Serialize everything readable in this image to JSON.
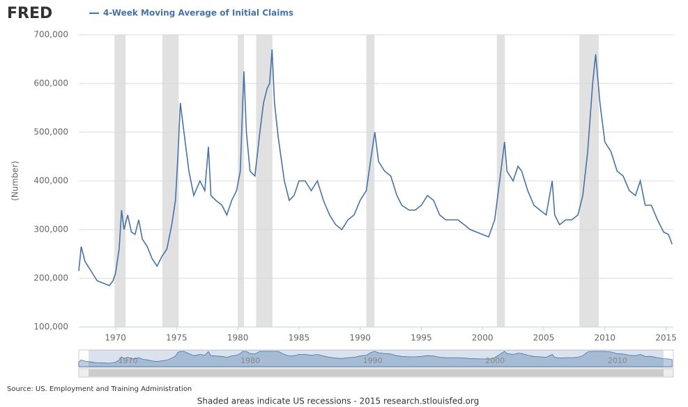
{
  "logo": "FRED",
  "footer": "Shaded areas indicate US recessions - 2015 research.stlouisfed.org",
  "chart_data": {
    "type": "line",
    "ylabel": "(Number)",
    "source": "Source: US. Employment and Training Administration",
    "grid": true,
    "xlim": [
      1967,
      2015.6
    ],
    "ylim": [
      100000,
      700000
    ],
    "xticks": [
      1970,
      1975,
      1980,
      1985,
      1990,
      1995,
      2000,
      2005,
      2010,
      2015
    ],
    "yticks": [
      {
        "value": 100000,
        "label": "100,000"
      },
      {
        "value": 200000,
        "label": "200,000"
      },
      {
        "value": 300000,
        "label": "300,000"
      },
      {
        "value": 400000,
        "label": "400,000"
      },
      {
        "value": 500000,
        "label": "500,000"
      },
      {
        "value": 600000,
        "label": "600,000"
      },
      {
        "value": 700000,
        "label": "700,000"
      }
    ],
    "recessions": [
      [
        1969.92,
        1970.83
      ],
      [
        1973.83,
        1975.17
      ],
      [
        1980.0,
        1980.5
      ],
      [
        1981.5,
        1982.83
      ],
      [
        1990.5,
        1991.17
      ],
      [
        2001.17,
        2001.83
      ],
      [
        2007.92,
        2009.5
      ]
    ],
    "recession_color": "#e1e1e1",
    "navigator_ticks": [
      1970,
      1980,
      1990,
      2000,
      2010
    ],
    "x": [
      1967.0,
      1967.2,
      1967.5,
      1968.0,
      1968.5,
      1969.0,
      1969.5,
      1969.8,
      1970.0,
      1970.3,
      1970.5,
      1970.7,
      1971.0,
      1971.3,
      1971.6,
      1971.9,
      1972.2,
      1972.6,
      1973.0,
      1973.4,
      1973.8,
      1974.2,
      1974.6,
      1974.9,
      1975.1,
      1975.3,
      1975.6,
      1976.0,
      1976.4,
      1976.9,
      1977.3,
      1977.6,
      1977.8,
      1978.2,
      1978.7,
      1979.1,
      1979.5,
      1979.9,
      1980.2,
      1980.4,
      1980.5,
      1980.7,
      1981.0,
      1981.4,
      1981.8,
      1982.1,
      1982.4,
      1982.6,
      1982.8,
      1983.0,
      1983.3,
      1983.8,
      1984.2,
      1984.6,
      1985.0,
      1985.5,
      1986.0,
      1986.5,
      1987.0,
      1987.5,
      1988.0,
      1988.5,
      1989.0,
      1989.5,
      1990.0,
      1990.5,
      1990.9,
      1991.2,
      1991.5,
      1992.0,
      1992.5,
      1993.0,
      1993.4,
      1994.0,
      1994.5,
      1995.0,
      1995.5,
      1996.0,
      1996.5,
      1997.0,
      1997.5,
      1998.0,
      1998.5,
      1999.0,
      1999.5,
      2000.0,
      2000.5,
      2001.0,
      2001.4,
      2001.8,
      2002.0,
      2002.5,
      2002.9,
      2003.2,
      2003.7,
      2004.2,
      2004.7,
      2005.2,
      2005.7,
      2005.9,
      2006.3,
      2006.8,
      2007.3,
      2007.8,
      2008.2,
      2008.6,
      2009.0,
      2009.25,
      2009.6,
      2010.0,
      2010.5,
      2011.0,
      2011.5,
      2012.0,
      2012.5,
      2012.9,
      2013.3,
      2013.8,
      2014.3,
      2014.8,
      2015.2,
      2015.5
    ],
    "series": [
      {
        "name": "4-Week Moving Average of Initial Claims",
        "color": "#4572a7",
        "values": [
          215000,
          265000,
          235000,
          215000,
          195000,
          190000,
          185000,
          195000,
          210000,
          260000,
          340000,
          300000,
          330000,
          295000,
          290000,
          320000,
          280000,
          265000,
          240000,
          225000,
          245000,
          260000,
          310000,
          360000,
          450000,
          560000,
          500000,
          420000,
          370000,
          400000,
          380000,
          470000,
          370000,
          360000,
          350000,
          330000,
          360000,
          380000,
          420000,
          560000,
          625000,
          500000,
          420000,
          410000,
          500000,
          560000,
          590000,
          600000,
          670000,
          560000,
          490000,
          400000,
          360000,
          370000,
          400000,
          400000,
          380000,
          400000,
          360000,
          330000,
          310000,
          300000,
          320000,
          330000,
          360000,
          380000,
          450000,
          500000,
          440000,
          420000,
          410000,
          370000,
          350000,
          340000,
          340000,
          350000,
          370000,
          360000,
          330000,
          320000,
          320000,
          320000,
          310000,
          300000,
          295000,
          290000,
          285000,
          320000,
          400000,
          480000,
          420000,
          400000,
          430000,
          420000,
          380000,
          350000,
          340000,
          330000,
          400000,
          330000,
          310000,
          320000,
          320000,
          330000,
          370000,
          460000,
          600000,
          660000,
          560000,
          480000,
          460000,
          420000,
          410000,
          380000,
          370000,
          400000,
          350000,
          350000,
          320000,
          295000,
          290000,
          270000
        ]
      }
    ]
  }
}
